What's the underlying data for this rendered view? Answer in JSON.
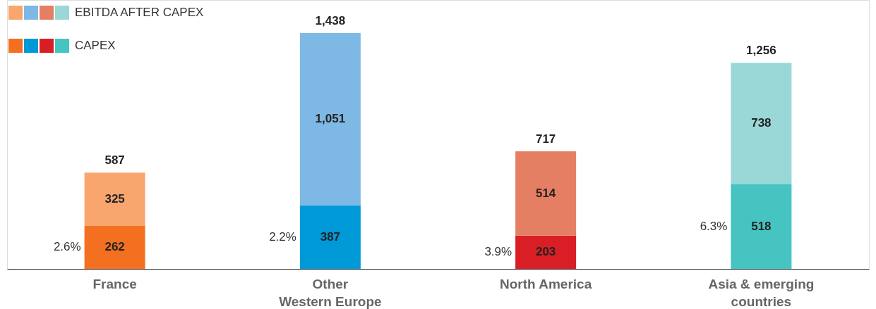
{
  "chart_data": {
    "type": "bar",
    "stacked": true,
    "legend": "top left",
    "grid": false,
    "categories": [
      "France",
      "Other\nWestern Europe",
      "North America",
      "Asia & emerging\ncountries"
    ],
    "series": [
      {
        "name": "CAPEX",
        "colors": [
          "#f37021",
          "#0099d8",
          "#d91e26",
          "#45c4c1"
        ],
        "values": [
          262,
          387,
          203,
          518
        ],
        "value_labels": [
          "262",
          "387",
          "203",
          "518"
        ]
      },
      {
        "name": "EBITDA AFTER CAPEX",
        "colors": [
          "#f8a66e",
          "#7eb8e4",
          "#e57f63",
          "#9ad8d7"
        ],
        "values": [
          325,
          1051,
          514,
          738
        ],
        "value_labels": [
          "325",
          "1,051",
          "514",
          "738"
        ]
      }
    ],
    "totals": [
      "587",
      "1,438",
      "717",
      "1,256"
    ],
    "annotations": [
      "2.6%",
      "2.2%",
      "3.9%",
      "6.3%"
    ]
  }
}
